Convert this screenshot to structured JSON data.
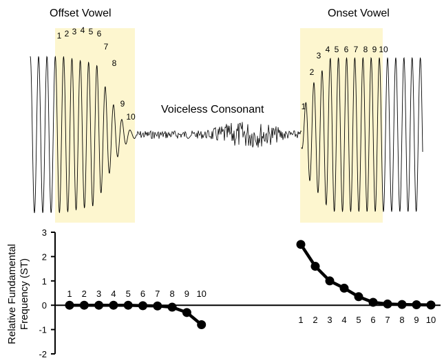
{
  "waveform": {
    "offset_label": "Offset Vowel",
    "onset_label": "Onset Vowel",
    "consonant_label": "Voiceless Consonant",
    "offset_cycle_labels": [
      "1",
      "2",
      "3",
      "4",
      "5",
      "6",
      "7",
      "8",
      "9",
      "10"
    ],
    "onset_cycle_labels": [
      "1",
      "2",
      "3",
      "4",
      "5",
      "6",
      "7",
      "8",
      "9",
      "10"
    ],
    "highlight_color": "#fdf6cf"
  },
  "chart_data": {
    "type": "line",
    "ylabel": "Relative Fundamental Frequency (ST)",
    "ylim": [
      -2,
      3
    ],
    "yticks": [
      "-2",
      "-1",
      "0",
      "1",
      "2",
      "3"
    ],
    "grid": false,
    "series": [
      {
        "x": [
          "1",
          "2",
          "3",
          "4",
          "5",
          "6",
          "7",
          "8",
          "9",
          "10"
        ],
        "values": [
          0.0,
          0.0,
          0.0,
          0.0,
          0.0,
          -0.02,
          -0.03,
          -0.08,
          -0.3,
          -0.8
        ]
      },
      {
        "x": [
          "1",
          "2",
          "3",
          "4",
          "5",
          "6",
          "7",
          "8",
          "9",
          "10"
        ],
        "values": [
          2.5,
          1.6,
          1.0,
          0.7,
          0.35,
          0.12,
          0.05,
          0.03,
          0.02,
          0.01
        ]
      }
    ],
    "color": "#000000"
  }
}
